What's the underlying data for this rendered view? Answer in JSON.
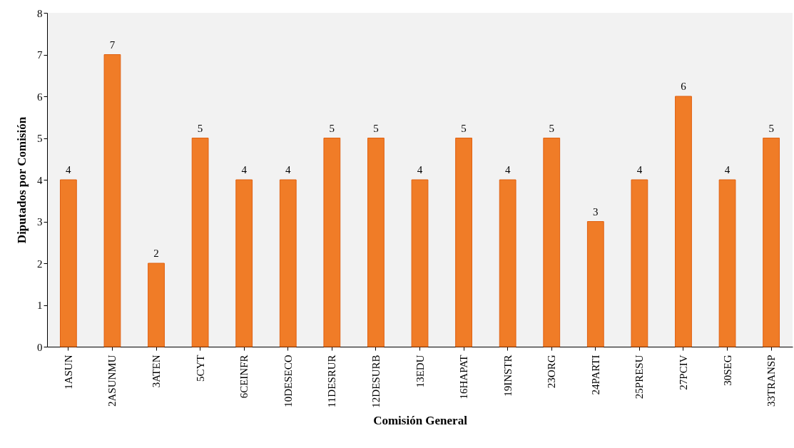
{
  "chart_data": {
    "type": "bar",
    "xlabel": "Comisión General",
    "ylabel": "Diputados por Comisión",
    "categories": [
      "1ASUN",
      "2ASUNMU",
      "3ATEN",
      "5CYT",
      "6CEINFR",
      "10DESECO",
      "11DESRUR",
      "12DESURB",
      "13EDU",
      "16HAPAT",
      "19INSTR",
      "23ORG",
      "24PARTI",
      "25PRESU",
      "27PCIV",
      "30SEG",
      "33TRANSP"
    ],
    "values": [
      4,
      7,
      2,
      5,
      4,
      4,
      5,
      5,
      4,
      5,
      4,
      5,
      3,
      4,
      6,
      4,
      5
    ],
    "color": "#f07c27",
    "ylim": [
      0,
      8
    ],
    "yticks": [
      0,
      1,
      2,
      3,
      4,
      5,
      6,
      7,
      8
    ],
    "data_labels": true,
    "grid": false
  }
}
